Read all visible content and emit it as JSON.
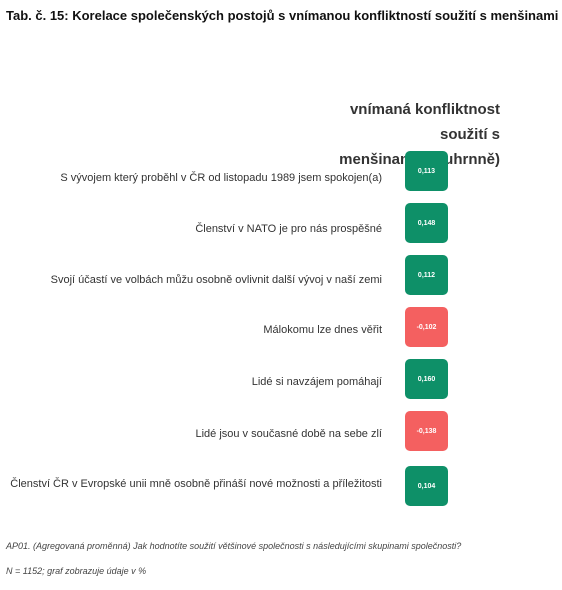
{
  "title": "Tab. č. 15: Korelace společenských postojů s vnímanou konfliktností soužití s menšinami",
  "column_header_line1": "vnímaná konfliktnost soužití s",
  "column_header_line2": "menšinami (souhrnně)",
  "colors": {
    "positive": "#0e9068",
    "negative": "#f46060"
  },
  "rows": [
    {
      "label": "S vývojem který proběhl v ČR od listopadu 1989 jsem spokojen(a)",
      "value": "0,113",
      "sign": "positive"
    },
    {
      "label": "Členství v NATO je pro nás prospěšné",
      "value": "0,148",
      "sign": "positive"
    },
    {
      "label": "Svojí účastí ve volbách můžu osobně ovlivnit další vývoj v naší zemi",
      "value": "0,112",
      "sign": "positive"
    },
    {
      "label": "Málokomu lze dnes věřit",
      "value": "-0,102",
      "sign": "negative"
    },
    {
      "label": "Lidé si navzájem pomáhají",
      "value": "0,160",
      "sign": "positive"
    },
    {
      "label": "Lidé jsou v současné době na sebe zlí",
      "value": "-0,138",
      "sign": "negative"
    },
    {
      "label": "Členství ČR v Evropské unii mně osobně přináší nové možnosti a příležitosti",
      "value": "0,104",
      "sign": "positive"
    }
  ],
  "footnote_question": "AP01. (Agregovaná proměnná) Jak hodnotíte soužití většinové společnosti s následujícími skupinami společnosti?",
  "footnote_n": "N = 1152; graf zobrazuje údaje v %"
}
